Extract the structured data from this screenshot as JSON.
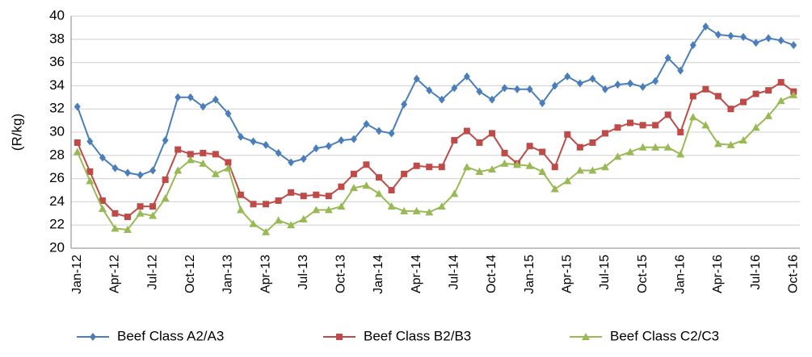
{
  "chart_data": {
    "type": "line",
    "y_label": "(R/kg)",
    "categories": [
      "Jan-12",
      null,
      null,
      "Apr-12",
      null,
      null,
      "Jul-12",
      null,
      null,
      "Oct-12",
      null,
      null,
      "Jan-13",
      null,
      null,
      "Apr-13",
      null,
      null,
      "Jul-13",
      null,
      null,
      "Oct-13",
      null,
      null,
      "Jan-14",
      null,
      null,
      "Apr-14",
      null,
      null,
      "Jul-14",
      null,
      null,
      "Oct-14",
      null,
      null,
      "Jan-15",
      null,
      null,
      "Apr-15",
      null,
      null,
      "Jul-15",
      null,
      null,
      "Oct-15",
      null,
      null,
      "Jan-16",
      null,
      null,
      "Apr-16",
      null,
      null,
      "Jul-16",
      null,
      null,
      "Oct-16"
    ],
    "series": [
      {
        "name": "Beef Class A2/A3",
        "color": "#4a7ebb",
        "marker": "diamond",
        "values": [
          32.2,
          29.2,
          27.8,
          26.9,
          26.5,
          26.3,
          26.7,
          29.3,
          33.0,
          33.0,
          32.2,
          32.8,
          31.6,
          29.6,
          29.2,
          28.9,
          28.2,
          27.4,
          27.7,
          28.6,
          28.8,
          29.3,
          29.4,
          30.7,
          30.1,
          29.9,
          32.4,
          34.6,
          33.6,
          32.8,
          33.8,
          34.8,
          33.5,
          32.8,
          33.8,
          33.7,
          33.7,
          32.5,
          34.0,
          34.8,
          34.2,
          34.6,
          33.7,
          34.1,
          34.2,
          33.9,
          34.4,
          36.4,
          35.3,
          37.5,
          39.1,
          38.4,
          38.3,
          38.2,
          37.7,
          38.1,
          37.9,
          37.5
        ]
      },
      {
        "name": "Beef Class B2/B3",
        "color": "#be4b48",
        "marker": "square",
        "values": [
          29.1,
          26.6,
          24.1,
          23.0,
          22.7,
          23.6,
          23.6,
          25.9,
          28.5,
          28.1,
          28.2,
          28.1,
          27.4,
          24.6,
          23.8,
          23.8,
          24.1,
          24.8,
          24.5,
          24.6,
          24.5,
          25.3,
          26.4,
          27.2,
          26.1,
          25.0,
          26.4,
          27.1,
          27.0,
          27.0,
          29.3,
          30.1,
          29.1,
          29.9,
          28.2,
          27.3,
          28.8,
          28.3,
          27.0,
          29.8,
          28.7,
          29.1,
          29.9,
          30.4,
          30.8,
          30.6,
          30.6,
          31.5,
          30.0,
          33.1,
          33.7,
          33.1,
          32.0,
          32.6,
          33.3,
          33.6,
          34.3,
          33.5
        ]
      },
      {
        "name": "Beef Class C2/C3",
        "color": "#98b954",
        "marker": "triangle",
        "values": [
          28.3,
          25.8,
          23.4,
          21.7,
          21.6,
          23.0,
          22.8,
          24.3,
          26.7,
          27.6,
          27.3,
          26.4,
          26.9,
          23.3,
          22.1,
          21.4,
          22.4,
          22.0,
          22.5,
          23.3,
          23.3,
          23.6,
          25.2,
          25.4,
          24.7,
          23.6,
          23.2,
          23.2,
          23.1,
          23.6,
          24.7,
          27.0,
          26.6,
          26.8,
          27.3,
          27.2,
          27.1,
          26.6,
          25.1,
          25.8,
          26.7,
          26.7,
          27.0,
          27.9,
          28.3,
          28.7,
          28.7,
          28.7,
          28.1,
          31.3,
          30.6,
          29.0,
          28.9,
          29.3,
          30.4,
          31.4,
          32.7,
          33.2
        ]
      }
    ],
    "ylim": [
      20,
      40
    ],
    "yticks": [
      20,
      22,
      24,
      26,
      28,
      30,
      32,
      34,
      36,
      38,
      40
    ],
    "grid": true,
    "legend": "bottom"
  }
}
